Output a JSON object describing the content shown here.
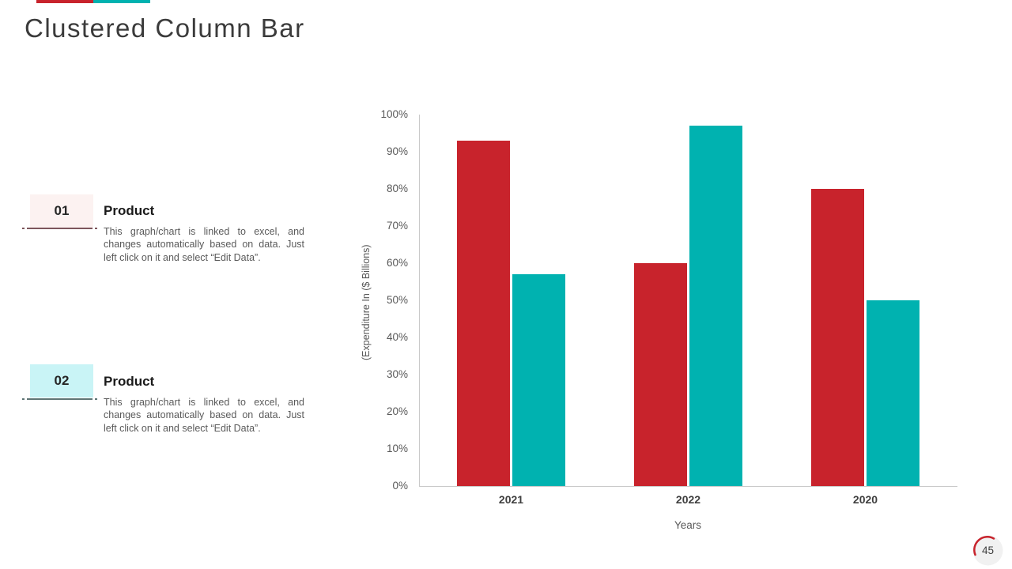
{
  "slide": {
    "title": "Clustered Column Bar",
    "page_number": "45",
    "accent_colors": {
      "red": "#c8232c",
      "teal": "#00b2b0"
    }
  },
  "items": [
    {
      "number": "01",
      "heading": "Product",
      "description": "This graph/chart is linked to excel, and changes automatically based on data. Just left click on it and select “Edit Data”.",
      "box_color": "#fcf2f1",
      "line_color": "#7d565c"
    },
    {
      "number": "02",
      "heading": "Product",
      "description": "This graph/chart is linked to excel, and changes automatically based on data. Just left click on it and select “Edit Data”.",
      "box_color": "#c9f4f6",
      "line_color": "#5f7575"
    }
  ],
  "chart_data": {
    "type": "bar",
    "title": "",
    "categories": [
      "2021",
      "2022",
      "2020"
    ],
    "series": [
      {
        "name": "Product 01",
        "color": "#c8232c",
        "values": [
          93,
          60,
          80
        ]
      },
      {
        "name": "Product 02",
        "color": "#00b2b0",
        "values": [
          57,
          97,
          50
        ]
      }
    ],
    "xlabel": "Years",
    "ylabel": "(Expenditure In ($ Billions)",
    "ylim": [
      0,
      100
    ],
    "yticks": [
      "0%",
      "10%",
      "20%",
      "30%",
      "40%",
      "50%",
      "60%",
      "70%",
      "80%",
      "90%",
      "100%"
    ],
    "grid": false,
    "legend": "none"
  }
}
